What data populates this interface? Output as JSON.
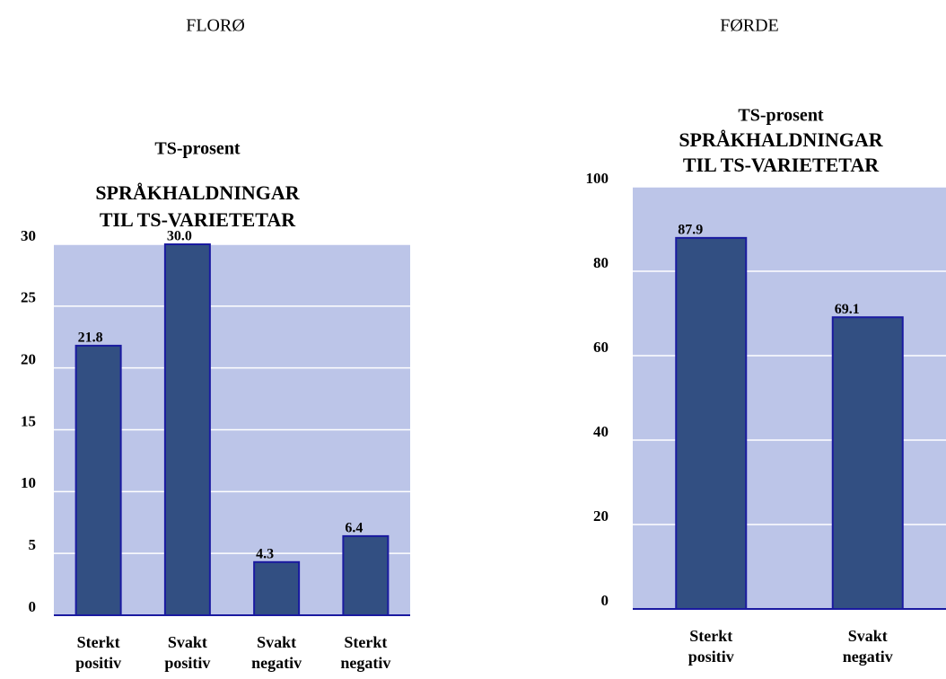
{
  "chart_data": [
    {
      "type": "bar",
      "heading": "FLORØ",
      "subtitle": "TS-prosent",
      "title": [
        "SPRÅKHALDNINGAR",
        "TIL TS-VARIETETAR"
      ],
      "categories": [
        [
          "Sterkt",
          "positiv"
        ],
        [
          "Svakt",
          "positiv"
        ],
        [
          "Svakt",
          "negativ"
        ],
        [
          "Sterkt",
          "negativ"
        ]
      ],
      "values": [
        21.8,
        30.0,
        4.3,
        6.4
      ],
      "value_labels": [
        "21.8",
        "30.0",
        "4.3",
        "6.4"
      ],
      "color": "#324f82",
      "ylim": [
        0,
        30
      ],
      "yticks": [
        0,
        5,
        10,
        15,
        20,
        25,
        30
      ],
      "grid": true
    },
    {
      "type": "bar",
      "heading": "FØRDE",
      "subtitle": "TS-prosent",
      "title": [
        "SPRÅKHALDNINGAR",
        "TIL TS-VARIETETAR"
      ],
      "categories": [
        [
          "Sterkt",
          "positiv"
        ],
        [
          "Svakt",
          "negativ"
        ]
      ],
      "values": [
        87.9,
        69.1
      ],
      "value_labels": [
        "87.9",
        "69.1"
      ],
      "color": "#324f82",
      "ylim": [
        0,
        100
      ],
      "yticks": [
        0,
        20,
        40,
        60,
        80,
        100
      ],
      "grid": true
    }
  ]
}
